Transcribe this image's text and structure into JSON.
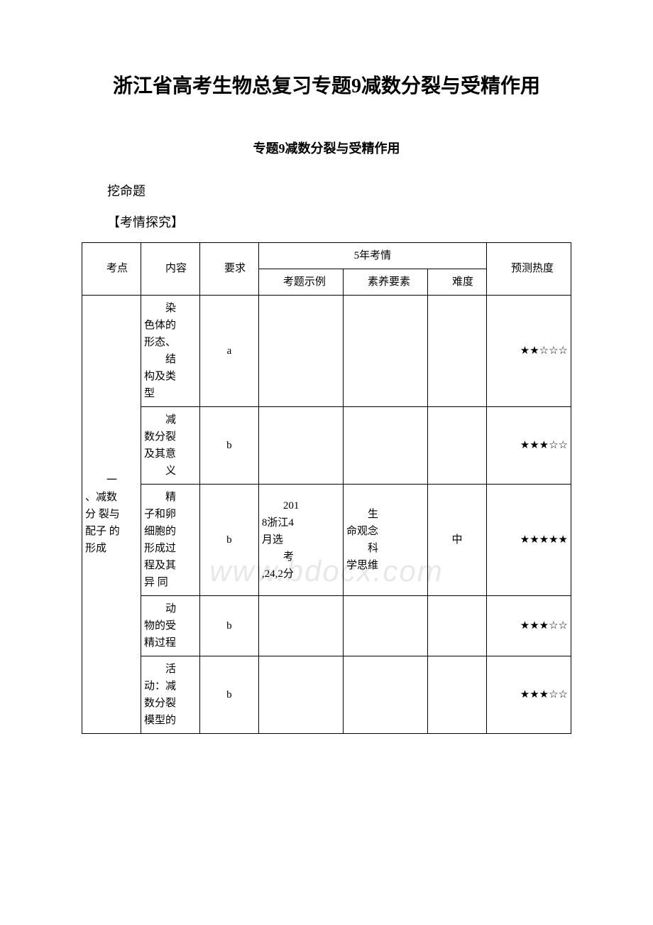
{
  "title": "浙江省高考生物总复习专题9减数分裂与受精作用",
  "subtitle": "专题9减数分裂与受精作用",
  "section_label": "挖命题",
  "inquiry_label": "【考情探究】",
  "watermark": "www.bdocx.com",
  "table": {
    "headers": {
      "col1": "考点",
      "col2": "内容",
      "col3": "要求",
      "col4_group": "5年考情",
      "col4a": "考题示例",
      "col4b": "素养要素",
      "col4c": "难度",
      "col5": "预测热度"
    },
    "topic1": {
      "name": "一、减数分裂与配子的形成",
      "rows": [
        {
          "content": "染色体的形态、\n结构及类型",
          "req": "a",
          "example": "",
          "element": "",
          "difficulty": "",
          "heat": "★★☆☆☆"
        },
        {
          "content": "减数分裂及其意义",
          "req": "b",
          "example": "",
          "element": "",
          "difficulty": "",
          "heat": "★★★☆☆"
        },
        {
          "content": "精子和卵细胞的形成过程及其异 同",
          "req": "b",
          "example": "2018浙江4月选\n考,24,2分",
          "element": "生命观念\n科学思维",
          "difficulty": "中",
          "heat": "★★★★★"
        },
        {
          "content": "动物的受精过程",
          "req": "b",
          "example": "",
          "element": "",
          "difficulty": "",
          "heat": "★★★☆☆"
        },
        {
          "content": "活动：减数分裂模型的",
          "req": "b",
          "example": "",
          "element": "",
          "difficulty": "",
          "heat": "★★★☆☆"
        }
      ]
    }
  }
}
